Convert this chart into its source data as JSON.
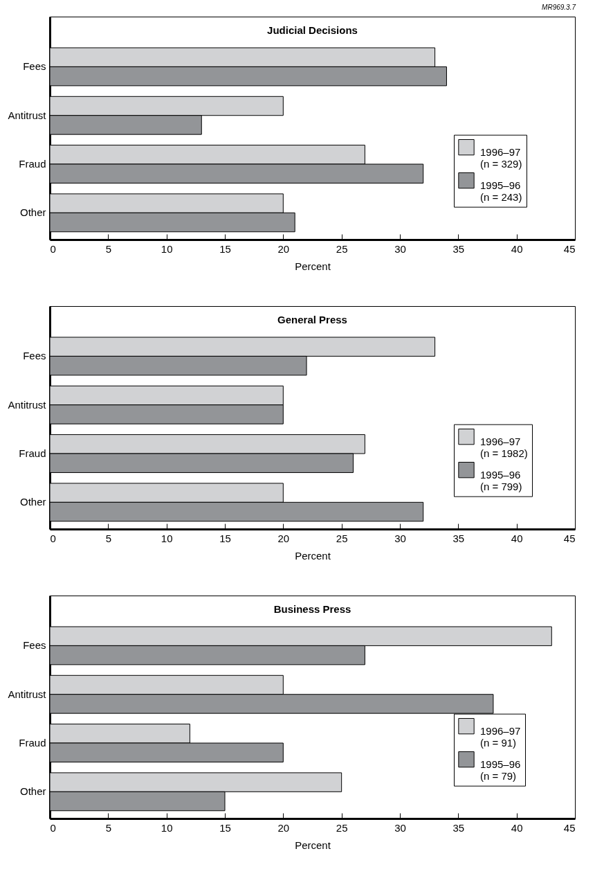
{
  "chart_data": [
    {
      "type": "bar",
      "orientation": "horizontal",
      "title": "Judicial Decisions",
      "xlabel": "Percent",
      "categories": [
        "Fees",
        "Antitrust",
        "Fraud",
        "Other"
      ],
      "xlim": [
        0,
        45
      ],
      "xticks": [
        0,
        5,
        10,
        15,
        20,
        25,
        30,
        35,
        40,
        45
      ],
      "grid": false,
      "legend": "right",
      "annotations": [
        "MR969.3.7"
      ],
      "series": [
        {
          "name": "1996–97\n(n = 329)",
          "color": "#d1d2d4",
          "values": [
            33,
            20,
            27,
            20
          ]
        },
        {
          "name": "1995–96\n(n = 243)",
          "color": "#939598",
          "values": [
            34,
            13,
            32,
            21
          ]
        }
      ]
    },
    {
      "type": "bar",
      "orientation": "horizontal",
      "title": "General Press",
      "xlabel": "Percent",
      "categories": [
        "Fees",
        "Antitrust",
        "Fraud",
        "Other"
      ],
      "xlim": [
        0,
        45
      ],
      "xticks": [
        0,
        5,
        10,
        15,
        20,
        25,
        30,
        35,
        40,
        45
      ],
      "grid": false,
      "legend": "right",
      "series": [
        {
          "name": "1996–97\n(n = 1982)",
          "color": "#d1d2d4",
          "values": [
            33,
            20,
            27,
            20
          ]
        },
        {
          "name": "1995–96\n(n = 799)",
          "color": "#939598",
          "values": [
            22,
            20,
            26,
            32
          ]
        }
      ]
    },
    {
      "type": "bar",
      "orientation": "horizontal",
      "title": "Business Press",
      "xlabel": "Percent",
      "categories": [
        "Fees",
        "Antitrust",
        "Fraud",
        "Other"
      ],
      "xlim": [
        0,
        45
      ],
      "xticks": [
        0,
        5,
        10,
        15,
        20,
        25,
        30,
        35,
        40,
        45
      ],
      "grid": false,
      "legend": "right",
      "series": [
        {
          "name": "1996–97\n(n = 91)",
          "color": "#d1d2d4",
          "values": [
            43,
            20,
            12,
            25
          ]
        },
        {
          "name": "1995–96\n(n = 79)",
          "color": "#939598",
          "values": [
            27,
            38,
            20,
            15
          ]
        }
      ]
    }
  ]
}
